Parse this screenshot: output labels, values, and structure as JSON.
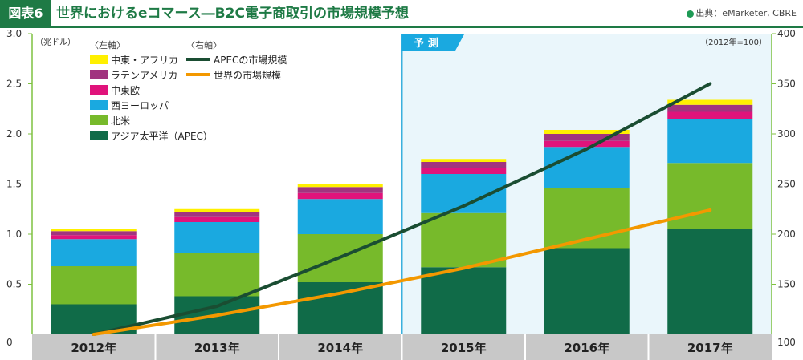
{
  "header": {
    "figure_label": "図表6",
    "title": "世界におけるeコマース―B2C電子商取引の市場規模予想",
    "source": "出典：eMarketer, CBRE"
  },
  "chart_data": {
    "type": "bar",
    "stacked": true,
    "categories": [
      "2012年",
      "2013年",
      "2014年",
      "2015年",
      "2016年",
      "2017年"
    ],
    "left_axis": {
      "label": "（兆ドル）",
      "caption": "〈左軸〉",
      "ylim": [
        0,
        3.0
      ],
      "ticks": [
        "0",
        "0.5",
        "1.0",
        "1.5",
        "2.0",
        "2.5",
        "3.0"
      ]
    },
    "right_axis": {
      "label": "（2012年=100）",
      "caption": "〈右軸〉",
      "ylim": [
        100,
        400
      ],
      "ticks": [
        "100",
        "150",
        "200",
        "250",
        "300",
        "350",
        "400"
      ]
    },
    "forecast_label": "予 測",
    "forecast_start_index": 3,
    "series": [
      {
        "name": "アジア太平洋（APEC）",
        "color": "#106b48",
        "values": [
          0.3,
          0.38,
          0.52,
          0.67,
          0.86,
          1.05
        ]
      },
      {
        "name": "北米",
        "color": "#77ba2b",
        "values": [
          0.38,
          0.43,
          0.48,
          0.54,
          0.6,
          0.66
        ]
      },
      {
        "name": "西ヨーロッパ",
        "color": "#1aa9e0",
        "values": [
          0.27,
          0.31,
          0.35,
          0.39,
          0.41,
          0.44
        ]
      },
      {
        "name": "中東欧",
        "color": "#e0137b",
        "values": [
          0.04,
          0.05,
          0.06,
          0.06,
          0.06,
          0.07
        ]
      },
      {
        "name": "ラテンアメリカ",
        "color": "#a1347f",
        "values": [
          0.04,
          0.05,
          0.06,
          0.06,
          0.07,
          0.07
        ]
      },
      {
        "name": "中東・アフリカ",
        "color": "#fff000",
        "values": [
          0.02,
          0.03,
          0.03,
          0.03,
          0.04,
          0.05
        ]
      }
    ],
    "lines": [
      {
        "name": "APECの市場規模",
        "color": "#1a4d32",
        "values": [
          100,
          128,
          177,
          228,
          285,
          350
        ]
      },
      {
        "name": "世界の市場規模",
        "color": "#f39800",
        "values": [
          100,
          119,
          141,
          166,
          195,
          224
        ]
      }
    ]
  }
}
